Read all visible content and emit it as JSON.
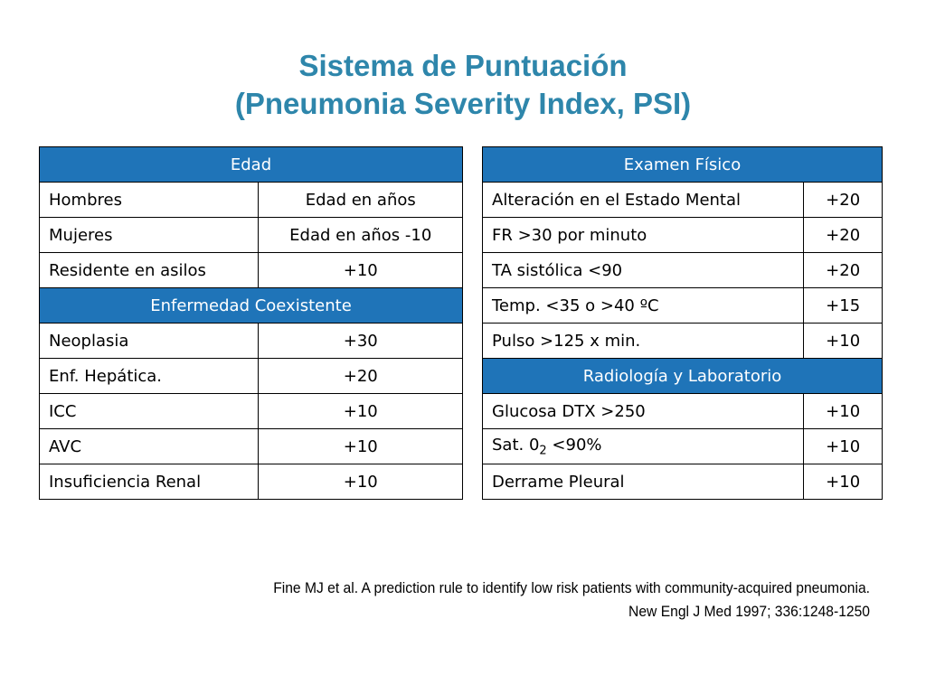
{
  "title": {
    "line1": "Sistema de Puntuación",
    "line2": "(Pneumonia Severity Index, PSI)"
  },
  "left_table": {
    "sections": [
      {
        "header": "Edad",
        "rows": [
          {
            "label": "Hombres",
            "value": "Edad en años"
          },
          {
            "label": "Mujeres",
            "value": "Edad en años -10"
          },
          {
            "label": "Residente en asilos",
            "value": "+10"
          }
        ]
      },
      {
        "header": "Enfermedad Coexistente",
        "rows": [
          {
            "label": "Neoplasia",
            "value": "+30"
          },
          {
            "label": "Enf. Hepática.",
            "value": "+20"
          },
          {
            "label": "ICC",
            "value": "+10"
          },
          {
            "label": "AVC",
            "value": "+10"
          },
          {
            "label": "Insuficiencia Renal",
            "value": "+10"
          }
        ]
      }
    ]
  },
  "right_table": {
    "sections": [
      {
        "header": "Examen Físico",
        "rows": [
          {
            "label": "Alteración en el Estado Mental",
            "value": "+20"
          },
          {
            "label": "FR >30 por minuto",
            "value": "+20"
          },
          {
            "label": "TA sistólica <90",
            "value": "+20"
          },
          {
            "label": "Temp. <35 o >40 ºC",
            "value": "+15"
          },
          {
            "label": "Pulso >125 x min.",
            "value": "+10"
          }
        ]
      },
      {
        "header": "Radiología y Laboratorio",
        "rows": [
          {
            "label": "Glucosa DTX >250",
            "value": "+10"
          },
          {
            "label_prefix": "Sat. 0",
            "label_sub": "2",
            "label_suffix": " <90%",
            "value": "+10"
          },
          {
            "label": "Derrame Pleural",
            "value": "+10"
          }
        ]
      }
    ]
  },
  "reference": {
    "line1": "Fine MJ et al. A prediction rule to identify low risk patients with community-acquired pneumonia.",
    "line2": "New Engl J Med 1997; 336:1248-1250"
  }
}
